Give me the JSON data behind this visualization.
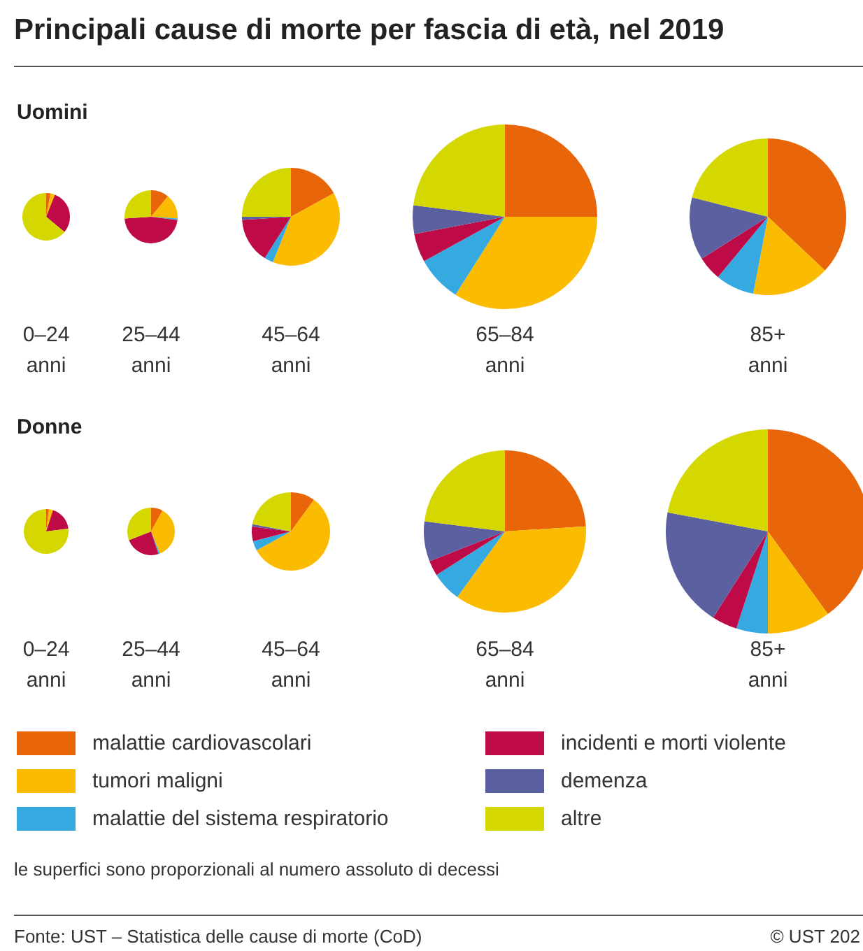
{
  "chart_data": [
    {
      "type": "pie",
      "title": "Principali cause di morte per fascia di età, nel 2019",
      "subtitle": "Uomini",
      "xlabel": "0–24\nanni",
      "categories": [
        "malattie cardiovascolari",
        "tumori maligni",
        "malattie del sistema respiratorio",
        "incidenti e morti violente",
        "demenza",
        "altre"
      ],
      "colors": [
        "#e8650a",
        "#fbbb00",
        "#36a9e1",
        "#be0a46",
        "#5b60a0",
        "#d4d800"
      ],
      "values": [
        3,
        3,
        null,
        30,
        null,
        64
      ],
      "legend": "bottom",
      "annotations": [
        "le superfici sono proporzionali al numero assoluto di decessi",
        "Fonte: UST – Statistica delle cause di morte (CoD)",
        "© UST 202"
      ]
    },
    {
      "type": "pie",
      "xlabel": "25–44\nanni",
      "colors": [
        "#e8650a",
        "#fbbb00",
        "#36a9e1",
        "#be0a46",
        "#5b60a0",
        "#d4d800"
      ],
      "values": [
        11,
        15,
        1,
        47,
        null,
        26
      ]
    },
    {
      "type": "pie",
      "xlabel": "45–64\nanni",
      "colors": [
        "#e8650a",
        "#fbbb00",
        "#36a9e1",
        "#be0a46",
        "#5b60a0",
        "#d4d800"
      ],
      "values": [
        17,
        39,
        3,
        15,
        1,
        25
      ]
    },
    {
      "type": "pie",
      "xlabel": "65–84\nanni",
      "colors": [
        "#e8650a",
        "#fbbb00",
        "#36a9e1",
        "#be0a46",
        "#5b60a0",
        "#d4d800"
      ],
      "values": [
        25,
        34,
        8,
        5,
        5,
        23
      ]
    },
    {
      "type": "pie",
      "xlabel": "85+\nanni",
      "colors": [
        "#e8650a",
        "#fbbb00",
        "#36a9e1",
        "#be0a46",
        "#5b60a0",
        "#d4d800"
      ],
      "values": [
        37,
        16,
        8,
        5,
        13,
        21
      ]
    },
    {
      "type": "pie",
      "subtitle": "Donne",
      "xlabel": "0–24\nanni",
      "colors": [
        "#e8650a",
        "#fbbb00",
        "#36a9e1",
        "#be0a46",
        "#5b60a0",
        "#d4d800"
      ],
      "values": [
        2,
        3,
        null,
        18,
        null,
        77
      ]
    },
    {
      "type": "pie",
      "xlabel": "25–44\nanni",
      "colors": [
        "#e8650a",
        "#fbbb00",
        "#36a9e1",
        "#be0a46",
        "#5b60a0",
        "#d4d800"
      ],
      "values": [
        8,
        36,
        1,
        24,
        null,
        31
      ]
    },
    {
      "type": "pie",
      "xlabel": "45–64\nanni",
      "colors": [
        "#e8650a",
        "#fbbb00",
        "#36a9e1",
        "#be0a46",
        "#5b60a0",
        "#d4d800"
      ],
      "values": [
        10,
        57,
        4,
        6,
        1,
        22
      ]
    },
    {
      "type": "pie",
      "xlabel": "65–84\nanni",
      "colors": [
        "#e8650a",
        "#fbbb00",
        "#36a9e1",
        "#be0a46",
        "#5b60a0",
        "#d4d800"
      ],
      "values": [
        24,
        36,
        6,
        3,
        8,
        23
      ]
    },
    {
      "type": "pie",
      "xlabel": "85+\nanni",
      "colors": [
        "#e8650a",
        "#fbbb00",
        "#36a9e1",
        "#be0a46",
        "#5b60a0",
        "#d4d800"
      ],
      "values": [
        40,
        10,
        5,
        4,
        19,
        22
      ]
    }
  ]
}
